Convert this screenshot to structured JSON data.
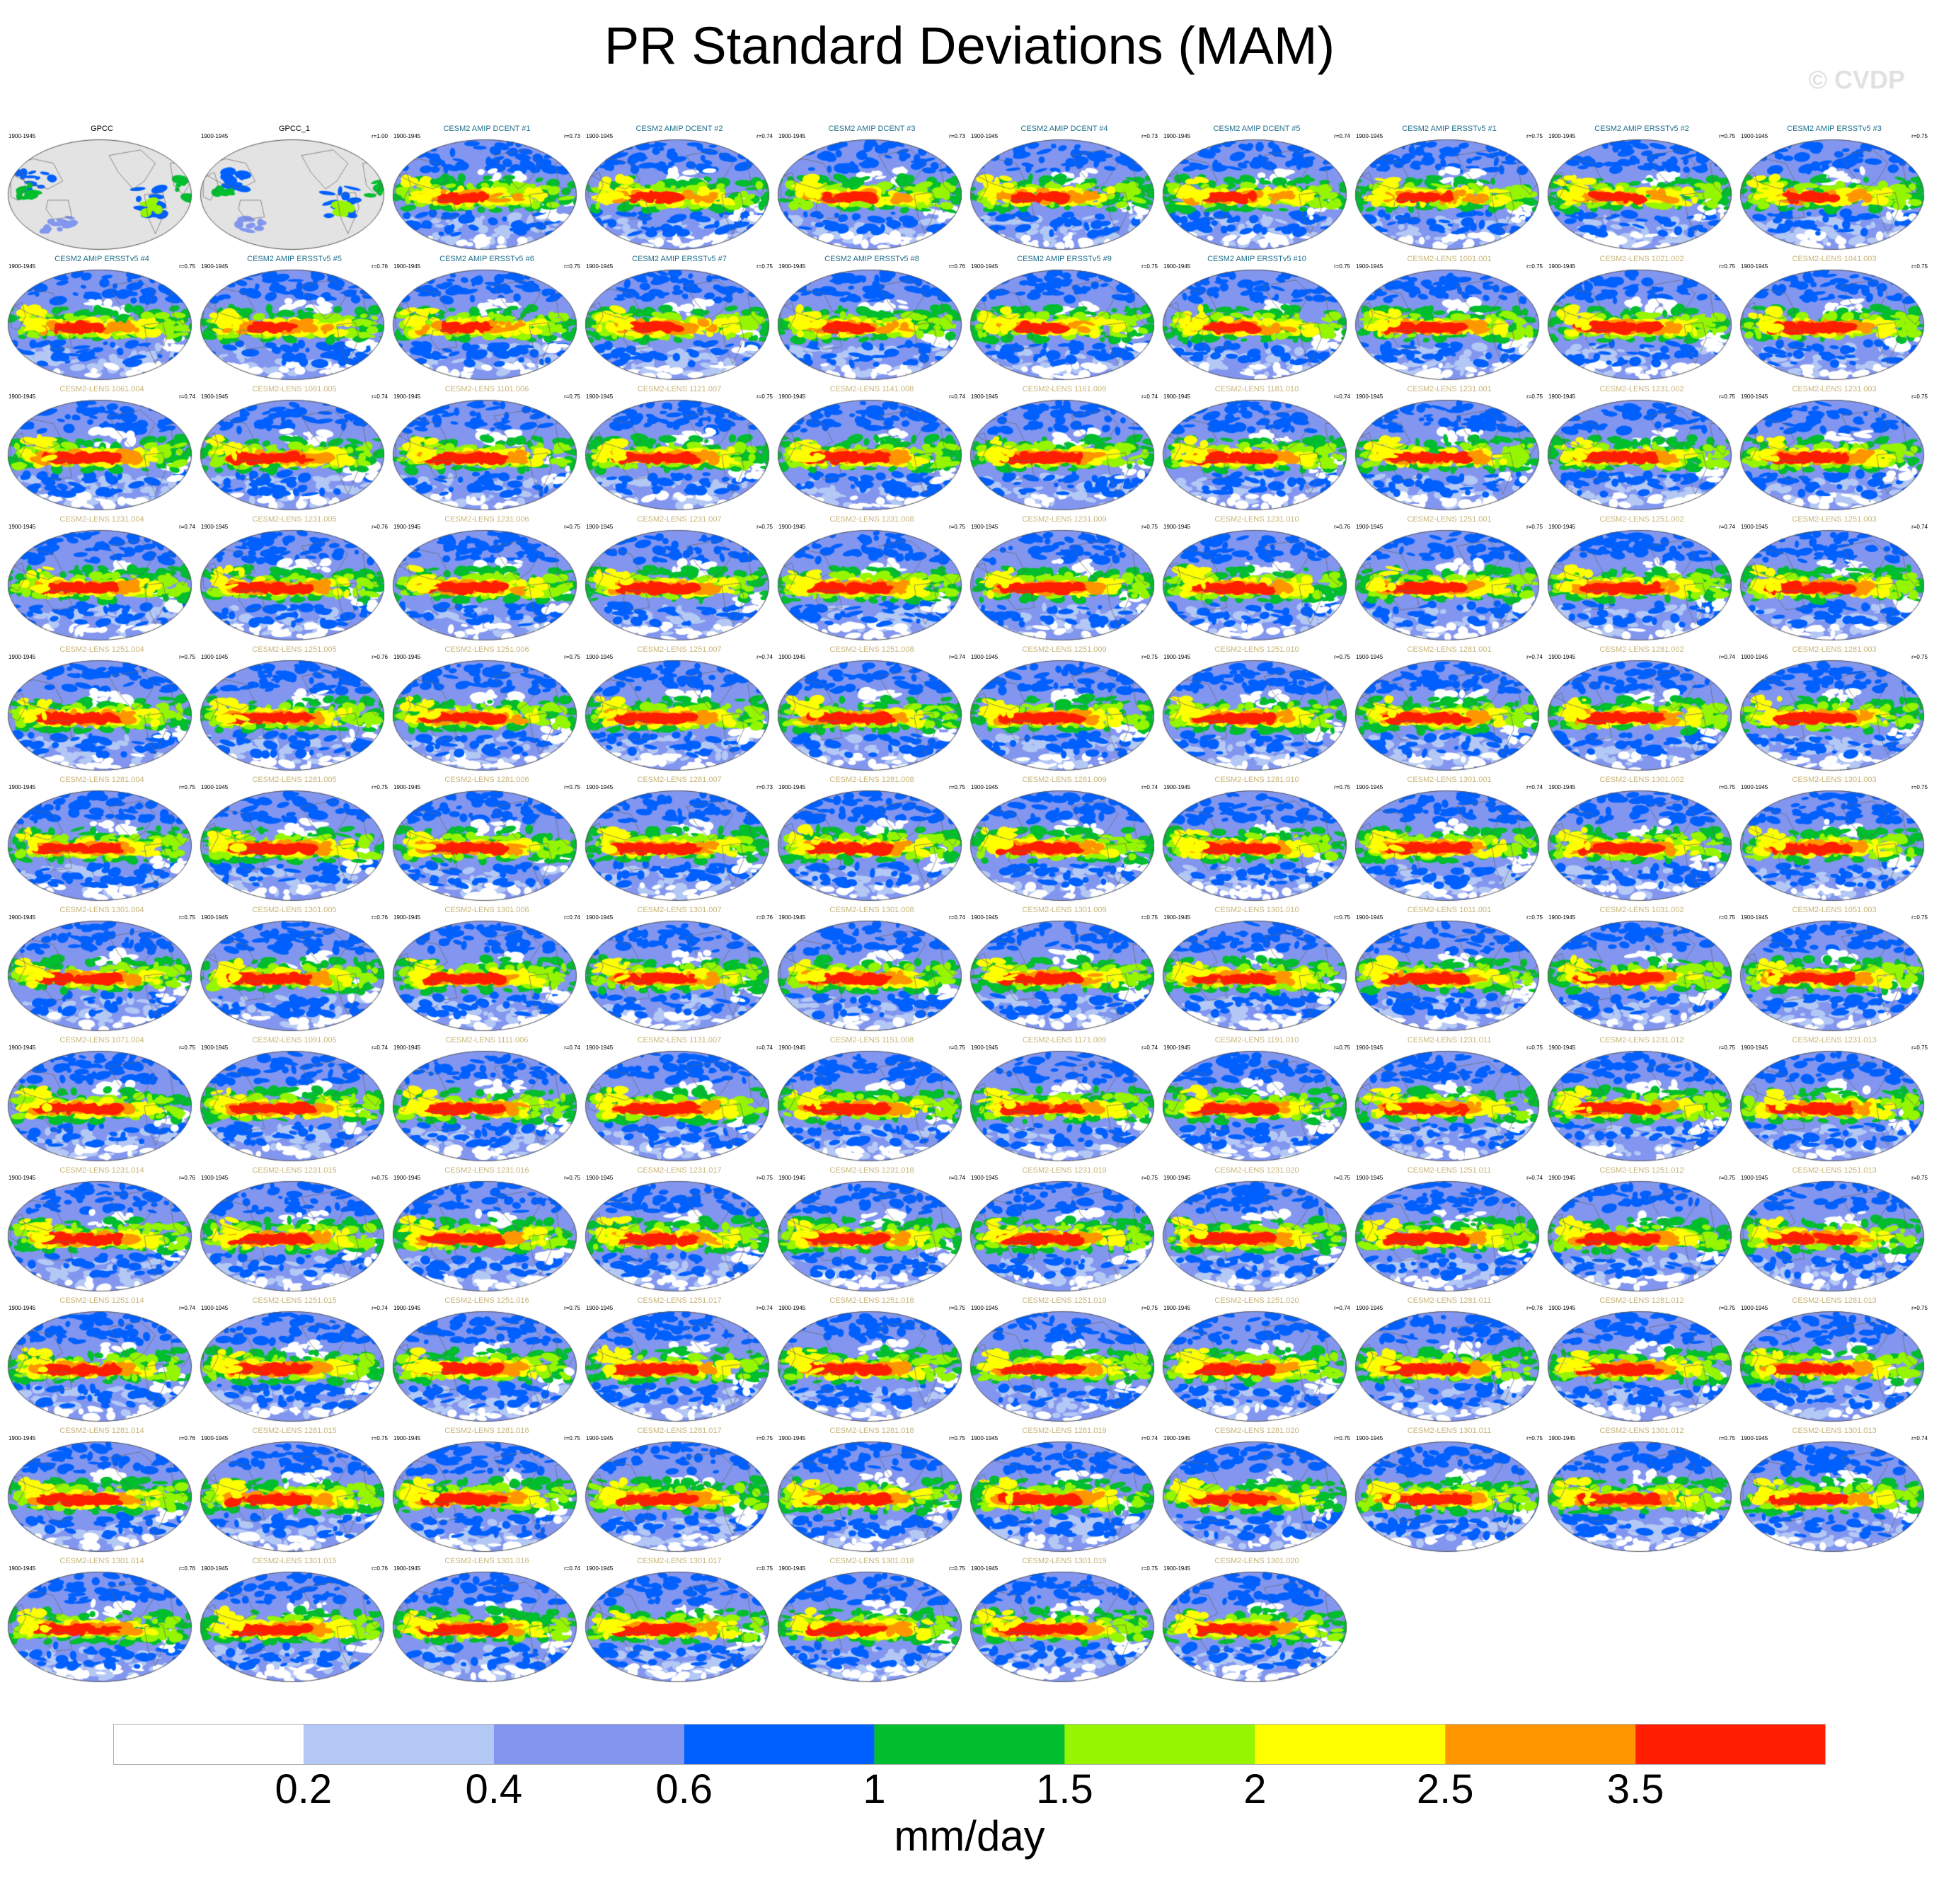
{
  "title": "PR Standard Deviations (MAM)",
  "copyright": "© CVDP",
  "units": "mm/day",
  "colorbar": {
    "colors": [
      "#ffffff",
      "#b4c8f5",
      "#8296f0",
      "#0060ff",
      "#00be2d",
      "#96f500",
      "#ffff00",
      "#ff9600",
      "#ff1e00"
    ],
    "labels": [
      "0.2",
      "0.4",
      "0.6",
      "1",
      "1.5",
      "2",
      "2.5",
      "3.5"
    ]
  },
  "title_colors": {
    "obs": "#000000",
    "amip": "#1f6e8c",
    "lens": "#c8b478"
  },
  "chart_data": {
    "type": "heatmap",
    "title": "PR Standard Deviations (MAM)",
    "variable": "PR",
    "season": "MAM",
    "units": "mm/day",
    "levels": [
      0.2,
      0.4,
      0.6,
      1,
      1.5,
      2,
      2.5,
      3.5
    ],
    "panels": [
      {
        "title": "GPCC",
        "period": "1900-1945",
        "r": "",
        "kind": "obs"
      },
      {
        "title": "GPCC_1",
        "period": "1900-1945",
        "r": "r=1.00",
        "kind": "obs"
      },
      {
        "title": "CESM2 AMIP DCENT #1",
        "period": "1900-1945",
        "r": "r=0.73",
        "kind": "amip"
      },
      {
        "title": "CESM2 AMIP DCENT #2",
        "period": "1900-1945",
        "r": "r=0.74",
        "kind": "amip"
      },
      {
        "title": "CESM2 AMIP DCENT #3",
        "period": "1900-1945",
        "r": "r=0.73",
        "kind": "amip"
      },
      {
        "title": "CESM2 AMIP DCENT #4",
        "period": "1900-1945",
        "r": "r=0.73",
        "kind": "amip"
      },
      {
        "title": "CESM2 AMIP DCENT #5",
        "period": "1900-1945",
        "r": "r=0.74",
        "kind": "amip"
      },
      {
        "title": "CESM2 AMIP ERSSTv5 #1",
        "period": "1900-1945",
        "r": "r=0.75",
        "kind": "amip"
      },
      {
        "title": "CESM2 AMIP ERSSTv5 #2",
        "period": "1900-1945",
        "r": "r=0.75",
        "kind": "amip"
      },
      {
        "title": "CESM2 AMIP ERSSTv5 #3",
        "period": "1900-1945",
        "r": "r=0.75",
        "kind": "amip"
      },
      {
        "title": "CESM2 AMIP ERSSTv5 #4",
        "period": "1900-1945",
        "r": "r=0.75",
        "kind": "amip"
      },
      {
        "title": "CESM2 AMIP ERSSTv5 #5",
        "period": "1900-1945",
        "r": "r=0.76",
        "kind": "amip"
      },
      {
        "title": "CESM2 AMIP ERSSTv5 #6",
        "period": "1900-1945",
        "r": "r=0.75",
        "kind": "amip"
      },
      {
        "title": "CESM2 AMIP ERSSTv5 #7",
        "period": "1900-1945",
        "r": "r=0.75",
        "kind": "amip"
      },
      {
        "title": "CESM2 AMIP ERSSTv5 #8",
        "period": "1900-1945",
        "r": "r=0.76",
        "kind": "amip"
      },
      {
        "title": "CESM2 AMIP ERSSTv5 #9",
        "period": "1900-1945",
        "r": "r=0.75",
        "kind": "amip"
      },
      {
        "title": "CESM2 AMIP ERSSTv5 #10",
        "period": "1900-1945",
        "r": "r=0.75",
        "kind": "amip"
      },
      {
        "title": "CESM2-LENS 1001.001",
        "period": "1900-1945",
        "r": "r=0.75",
        "kind": "lens"
      },
      {
        "title": "CESM2-LENS 1021.002",
        "period": "1900-1945",
        "r": "r=0.75",
        "kind": "lens"
      },
      {
        "title": "CESM2-LENS 1041.003",
        "period": "1900-1945",
        "r": "r=0.75",
        "kind": "lens"
      },
      {
        "title": "CESM2-LENS 1061.004",
        "period": "1900-1945",
        "r": "r=0.74",
        "kind": "lens"
      },
      {
        "title": "CESM2-LENS 1081.005",
        "period": "1900-1945",
        "r": "r=0.74",
        "kind": "lens"
      },
      {
        "title": "CESM2-LENS 1101.006",
        "period": "1900-1945",
        "r": "r=0.75",
        "kind": "lens"
      },
      {
        "title": "CESM2-LENS 1121.007",
        "period": "1900-1945",
        "r": "r=0.75",
        "kind": "lens"
      },
      {
        "title": "CESM2-LENS 1141.008",
        "period": "1900-1945",
        "r": "r=0.74",
        "kind": "lens"
      },
      {
        "title": "CESM2-LENS 1161.009",
        "period": "1900-1945",
        "r": "r=0.74",
        "kind": "lens"
      },
      {
        "title": "CESM2-LENS 1181.010",
        "period": "1900-1945",
        "r": "r=0.74",
        "kind": "lens"
      },
      {
        "title": "CESM2-LENS 1231.001",
        "period": "1900-1945",
        "r": "r=0.75",
        "kind": "lens"
      },
      {
        "title": "CESM2-LENS 1231.002",
        "period": "1900-1945",
        "r": "r=0.75",
        "kind": "lens"
      },
      {
        "title": "CESM2-LENS 1231.003",
        "period": "1900-1945",
        "r": "r=0.75",
        "kind": "lens"
      },
      {
        "title": "CESM2-LENS 1231.004",
        "period": "1900-1945",
        "r": "r=0.74",
        "kind": "lens"
      },
      {
        "title": "CESM2-LENS 1231.005",
        "period": "1900-1945",
        "r": "r=0.76",
        "kind": "lens"
      },
      {
        "title": "CESM2-LENS 1231.006",
        "period": "1900-1945",
        "r": "r=0.75",
        "kind": "lens"
      },
      {
        "title": "CESM2-LENS 1231.007",
        "period": "1900-1945",
        "r": "r=0.75",
        "kind": "lens"
      },
      {
        "title": "CESM2-LENS 1231.008",
        "period": "1900-1945",
        "r": "r=0.75",
        "kind": "lens"
      },
      {
        "title": "CESM2-LENS 1231.009",
        "period": "1900-1945",
        "r": "r=0.75",
        "kind": "lens"
      },
      {
        "title": "CESM2-LENS 1231.010",
        "period": "1900-1945",
        "r": "r=0.76",
        "kind": "lens"
      },
      {
        "title": "CESM2-LENS 1251.001",
        "period": "1900-1945",
        "r": "r=0.75",
        "kind": "lens"
      },
      {
        "title": "CESM2-LENS 1251.002",
        "period": "1900-1945",
        "r": "r=0.74",
        "kind": "lens"
      },
      {
        "title": "CESM2-LENS 1251.003",
        "period": "1900-1945",
        "r": "r=0.74",
        "kind": "lens"
      },
      {
        "title": "CESM2-LENS 1251.004",
        "period": "1900-1945",
        "r": "r=0.75",
        "kind": "lens"
      },
      {
        "title": "CESM2-LENS 1251.005",
        "period": "1900-1945",
        "r": "r=0.76",
        "kind": "lens"
      },
      {
        "title": "CESM2-LENS 1251.006",
        "period": "1900-1945",
        "r": "r=0.75",
        "kind": "lens"
      },
      {
        "title": "CESM2-LENS 1251.007",
        "period": "1900-1945",
        "r": "r=0.74",
        "kind": "lens"
      },
      {
        "title": "CESM2-LENS 1251.008",
        "period": "1900-1945",
        "r": "r=0.74",
        "kind": "lens"
      },
      {
        "title": "CESM2-LENS 1251.009",
        "period": "1900-1945",
        "r": "r=0.75",
        "kind": "lens"
      },
      {
        "title": "CESM2-LENS 1251.010",
        "period": "1900-1945",
        "r": "r=0.75",
        "kind": "lens"
      },
      {
        "title": "CESM2-LENS 1281.001",
        "period": "1900-1945",
        "r": "r=0.74",
        "kind": "lens"
      },
      {
        "title": "CESM2-LENS 1281.002",
        "period": "1900-1945",
        "r": "r=0.74",
        "kind": "lens"
      },
      {
        "title": "CESM2-LENS 1281.003",
        "period": "1900-1945",
        "r": "r=0.75",
        "kind": "lens"
      },
      {
        "title": "CESM2-LENS 1281.004",
        "period": "1900-1945",
        "r": "r=0.75",
        "kind": "lens"
      },
      {
        "title": "CESM2-LENS 1281.005",
        "period": "1900-1945",
        "r": "r=0.75",
        "kind": "lens"
      },
      {
        "title": "CESM2-LENS 1281.006",
        "period": "1900-1945",
        "r": "r=0.75",
        "kind": "lens"
      },
      {
        "title": "CESM2-LENS 1281.007",
        "period": "1900-1945",
        "r": "r=0.73",
        "kind": "lens"
      },
      {
        "title": "CESM2-LENS 1281.008",
        "period": "1900-1945",
        "r": "r=0.75",
        "kind": "lens"
      },
      {
        "title": "CESM2-LENS 1281.009",
        "period": "1900-1945",
        "r": "r=0.74",
        "kind": "lens"
      },
      {
        "title": "CESM2-LENS 1281.010",
        "period": "1900-1945",
        "r": "r=0.75",
        "kind": "lens"
      },
      {
        "title": "CESM2-LENS 1301.001",
        "period": "1900-1945",
        "r": "r=0.74",
        "kind": "lens"
      },
      {
        "title": "CESM2-LENS 1301.002",
        "period": "1900-1945",
        "r": "r=0.75",
        "kind": "lens"
      },
      {
        "title": "CESM2-LENS 1301.003",
        "period": "1900-1945",
        "r": "r=0.75",
        "kind": "lens"
      },
      {
        "title": "CESM2-LENS 1301.004",
        "period": "1900-1945",
        "r": "r=0.75",
        "kind": "lens"
      },
      {
        "title": "CESM2-LENS 1301.005",
        "period": "1900-1945",
        "r": "r=0.76",
        "kind": "lens"
      },
      {
        "title": "CESM2-LENS 1301.006",
        "period": "1900-1945",
        "r": "r=0.74",
        "kind": "lens"
      },
      {
        "title": "CESM2-LENS 1301.007",
        "period": "1900-1945",
        "r": "r=0.76",
        "kind": "lens"
      },
      {
        "title": "CESM2-LENS 1301.008",
        "period": "1900-1945",
        "r": "r=0.74",
        "kind": "lens"
      },
      {
        "title": "CESM2-LENS 1301.009",
        "period": "1900-1945",
        "r": "r=0.75",
        "kind": "lens"
      },
      {
        "title": "CESM2-LENS 1301.010",
        "period": "1900-1945",
        "r": "r=0.75",
        "kind": "lens"
      },
      {
        "title": "CESM2-LENS 1011.001",
        "period": "1900-1945",
        "r": "r=0.75",
        "kind": "lens"
      },
      {
        "title": "CESM2-LENS 1031.002",
        "period": "1900-1945",
        "r": "r=0.75",
        "kind": "lens"
      },
      {
        "title": "CESM2-LENS 1051.003",
        "period": "1900-1945",
        "r": "r=0.75",
        "kind": "lens"
      },
      {
        "title": "CESM2-LENS 1071.004",
        "period": "1900-1945",
        "r": "r=0.75",
        "kind": "lens"
      },
      {
        "title": "CESM2-LENS 1091.005",
        "period": "1900-1945",
        "r": "r=0.74",
        "kind": "lens"
      },
      {
        "title": "CESM2-LENS 1111.006",
        "period": "1900-1945",
        "r": "r=0.74",
        "kind": "lens"
      },
      {
        "title": "CESM2-LENS 1131.007",
        "period": "1900-1945",
        "r": "r=0.74",
        "kind": "lens"
      },
      {
        "title": "CESM2-LENS 1151.008",
        "period": "1900-1945",
        "r": "r=0.75",
        "kind": "lens"
      },
      {
        "title": "CESM2-LENS 1171.009",
        "period": "1900-1945",
        "r": "r=0.74",
        "kind": "lens"
      },
      {
        "title": "CESM2-LENS 1191.010",
        "period": "1900-1945",
        "r": "r=0.75",
        "kind": "lens"
      },
      {
        "title": "CESM2-LENS 1231.011",
        "period": "1900-1945",
        "r": "r=0.75",
        "kind": "lens"
      },
      {
        "title": "CESM2-LENS 1231.012",
        "period": "1900-1945",
        "r": "r=0.75",
        "kind": "lens"
      },
      {
        "title": "CESM2-LENS 1231.013",
        "period": "1900-1945",
        "r": "r=0.75",
        "kind": "lens"
      },
      {
        "title": "CESM2-LENS 1231.014",
        "period": "1900-1945",
        "r": "r=0.76",
        "kind": "lens"
      },
      {
        "title": "CESM2-LENS 1231.015",
        "period": "1900-1945",
        "r": "r=0.75",
        "kind": "lens"
      },
      {
        "title": "CESM2-LENS 1231.016",
        "period": "1900-1945",
        "r": "r=0.75",
        "kind": "lens"
      },
      {
        "title": "CESM2-LENS 1231.017",
        "period": "1900-1945",
        "r": "r=0.75",
        "kind": "lens"
      },
      {
        "title": "CESM2-LENS 1231.018",
        "period": "1900-1945",
        "r": "r=0.74",
        "kind": "lens"
      },
      {
        "title": "CESM2-LENS 1231.019",
        "period": "1900-1945",
        "r": "r=0.75",
        "kind": "lens"
      },
      {
        "title": "CESM2-LENS 1231.020",
        "period": "1900-1945",
        "r": "r=0.75",
        "kind": "lens"
      },
      {
        "title": "CESM2-LENS 1251.011",
        "period": "1900-1945",
        "r": "r=0.74",
        "kind": "lens"
      },
      {
        "title": "CESM2-LENS 1251.012",
        "period": "1900-1945",
        "r": "r=0.75",
        "kind": "lens"
      },
      {
        "title": "CESM2-LENS 1251.013",
        "period": "1900-1945",
        "r": "r=0.75",
        "kind": "lens"
      },
      {
        "title": "CESM2-LENS 1251.014",
        "period": "1900-1945",
        "r": "r=0.74",
        "kind": "lens"
      },
      {
        "title": "CESM2-LENS 1251.015",
        "period": "1900-1945",
        "r": "r=0.74",
        "kind": "lens"
      },
      {
        "title": "CESM2-LENS 1251.016",
        "period": "1900-1945",
        "r": "r=0.75",
        "kind": "lens"
      },
      {
        "title": "CESM2-LENS 1251.017",
        "period": "1900-1945",
        "r": "r=0.74",
        "kind": "lens"
      },
      {
        "title": "CESM2-LENS 1251.018",
        "period": "1900-1945",
        "r": "r=0.75",
        "kind": "lens"
      },
      {
        "title": "CESM2-LENS 1251.019",
        "period": "1900-1945",
        "r": "r=0.75",
        "kind": "lens"
      },
      {
        "title": "CESM2-LENS 1251.020",
        "period": "1900-1945",
        "r": "r=0.74",
        "kind": "lens"
      },
      {
        "title": "CESM2-LENS 1281.011",
        "period": "1900-1945",
        "r": "r=0.76",
        "kind": "lens"
      },
      {
        "title": "CESM2-LENS 1281.012",
        "period": "1900-1945",
        "r": "r=0.75",
        "kind": "lens"
      },
      {
        "title": "CESM2-LENS 1281.013",
        "period": "1900-1945",
        "r": "r=0.75",
        "kind": "lens"
      },
      {
        "title": "CESM2-LENS 1281.014",
        "period": "1900-1945",
        "r": "r=0.76",
        "kind": "lens"
      },
      {
        "title": "CESM2-LENS 1281.015",
        "period": "1900-1945",
        "r": "r=0.75",
        "kind": "lens"
      },
      {
        "title": "CESM2-LENS 1281.016",
        "period": "1900-1945",
        "r": "r=0.75",
        "kind": "lens"
      },
      {
        "title": "CESM2-LENS 1281.017",
        "period": "1900-1945",
        "r": "r=0.75",
        "kind": "lens"
      },
      {
        "title": "CESM2-LENS 1281.018",
        "period": "1900-1945",
        "r": "r=0.75",
        "kind": "lens"
      },
      {
        "title": "CESM2-LENS 1281.019",
        "period": "1900-1945",
        "r": "r=0.74",
        "kind": "lens"
      },
      {
        "title": "CESM2-LENS 1281.020",
        "period": "1900-1945",
        "r": "r=0.75",
        "kind": "lens"
      },
      {
        "title": "CESM2-LENS 1301.011",
        "period": "1900-1945",
        "r": "r=0.75",
        "kind": "lens"
      },
      {
        "title": "CESM2-LENS 1301.012",
        "period": "1900-1945",
        "r": "r=0.75",
        "kind": "lens"
      },
      {
        "title": "CESM2-LENS 1301.013",
        "period": "1900-1945",
        "r": "r=0.74",
        "kind": "lens"
      },
      {
        "title": "CESM2-LENS 1301.014",
        "period": "1900-1945",
        "r": "r=0.76",
        "kind": "lens"
      },
      {
        "title": "CESM2-LENS 1301.015",
        "period": "1900-1945",
        "r": "r=0.76",
        "kind": "lens"
      },
      {
        "title": "CESM2-LENS 1301.016",
        "period": "1900-1945",
        "r": "r=0.74",
        "kind": "lens"
      },
      {
        "title": "CESM2-LENS 1301.017",
        "period": "1900-1945",
        "r": "r=0.75",
        "kind": "lens"
      },
      {
        "title": "CESM2-LENS 1301.018",
        "period": "1900-1945",
        "r": "r=0.75",
        "kind": "lens"
      },
      {
        "title": "CESM2-LENS 1301.019",
        "period": "1900-1945",
        "r": "r=0.75",
        "kind": "lens"
      },
      {
        "title": "CESM2-LENS 1301.020",
        "period": "1900-1945",
        "r": "",
        "kind": "lens"
      }
    ]
  }
}
